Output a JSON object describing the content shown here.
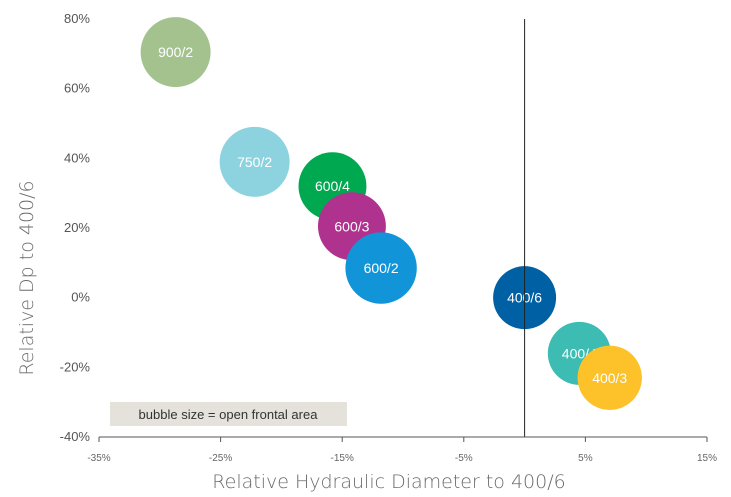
{
  "chart_data": {
    "type": "scatter",
    "title": "",
    "xlabel": "Relative Hydraulic Diameter  to 400/6",
    "ylabel": "Relative Dp to 400/6",
    "xlim": [
      -0.35,
      0.15
    ],
    "ylim": [
      -0.4,
      0.8
    ],
    "x_ticks": [
      -0.35,
      -0.25,
      -0.15,
      -0.05,
      0.05,
      0.15
    ],
    "x_tick_labels": [
      "-35%",
      "-25%",
      "-15%",
      "-5%",
      "5%",
      "15%"
    ],
    "y_ticks": [
      0.8,
      0.6,
      0.4,
      0.2,
      0.0,
      -0.2,
      -0.4
    ],
    "y_tick_labels": [
      "80%",
      "60%",
      "40%",
      "20%",
      "0%",
      "-20%",
      "-40%"
    ],
    "grid": false,
    "reference_line_x": 0.0,
    "note": "bubble size = open frontal area",
    "points": [
      {
        "label": "900/2",
        "x": -0.287,
        "y": 0.705,
        "size": 1.0,
        "color": "#a3c28e"
      },
      {
        "label": "750/2",
        "x": -0.222,
        "y": 0.39,
        "size": 1.0,
        "color": "#8dd3df"
      },
      {
        "label": "600/4",
        "x": -0.158,
        "y": 0.32,
        "size": 0.97,
        "color": "#00a850"
      },
      {
        "label": "600/3",
        "x": -0.142,
        "y": 0.205,
        "size": 0.97,
        "color": "#b0328f"
      },
      {
        "label": "600/2",
        "x": -0.118,
        "y": 0.085,
        "size": 1.02,
        "color": "#1295d8"
      },
      {
        "label": "400/6",
        "x": 0.0,
        "y": 0.0,
        "size": 0.9,
        "color": "#0060a4"
      },
      {
        "label": "400/4",
        "x": 0.045,
        "y": -0.16,
        "size": 0.9,
        "color": "#3cbcb2"
      },
      {
        "label": "400/3",
        "x": 0.07,
        "y": -0.23,
        "size": 0.92,
        "color": "#fdc12a"
      }
    ]
  }
}
